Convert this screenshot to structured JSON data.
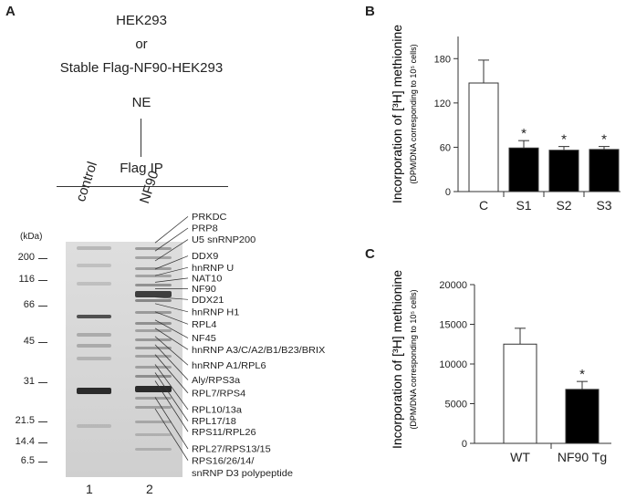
{
  "panel_a": {
    "letter": "A",
    "flow": [
      "HEK293",
      "or",
      "Stable Flag-NF90-HEK293",
      "NE",
      "Flag IP"
    ],
    "lanes": [
      "control",
      "NF90"
    ],
    "lane_numbers": [
      "1",
      "2"
    ],
    "kda_label": "(kDa)",
    "markers": [
      "200",
      "116",
      "66",
      "45",
      "31",
      "21.5",
      "14.4",
      "6.5"
    ],
    "proteins": [
      "PRKDC",
      "PRP8",
      "U5 snRNP200",
      "DDX9",
      "hnRNP U",
      "NAT10",
      "NF90",
      "DDX21",
      "hnRNP H1",
      "RPL4",
      "NF45",
      "hnRNP A3/C/A2/B1/B23/BRIX",
      "hnRNP A1/RPL6",
      "Aly/RPS3a",
      "RPL7/RPS4",
      "RPL10/13a",
      "RPL17/18",
      "RPS11/RPL26",
      "RPL27/RPS13/15",
      "RPS16/26/14/",
      "snRNP D3 polypeptide"
    ]
  },
  "panel_b": {
    "letter": "B",
    "ylabel_main": "Incorporation of [³H] methionine",
    "ylabel_sub": "(DPM/DNA corresponding to 10⁵ cells)",
    "sig_mark": "*"
  },
  "panel_c": {
    "letter": "C",
    "ylabel_main": "Incorporation of [³H] methionine",
    "ylabel_sub": "(DPM/DNA corresponding to 10⁵ cells)",
    "sig_mark": "*"
  },
  "colors": {
    "open_bar": "#ffffff",
    "filled_bar": "#000000",
    "gel": "#d4d4d4"
  },
  "chart_data": [
    {
      "type": "bar",
      "categories": [
        "C",
        "S1",
        "S2",
        "S3"
      ],
      "values": [
        147,
        59,
        56,
        57
      ],
      "errors": [
        31,
        10,
        5,
        4
      ],
      "significant": [
        false,
        true,
        true,
        true
      ],
      "fills": [
        "open",
        "filled",
        "filled",
        "filled"
      ],
      "yticks": [
        "0",
        "60",
        "120",
        "180"
      ],
      "ylim": [
        0,
        210
      ]
    },
    {
      "type": "bar",
      "categories": [
        "WT",
        "NF90 Tg"
      ],
      "values": [
        12500,
        6800
      ],
      "errors": [
        2000,
        1000
      ],
      "significant": [
        false,
        true
      ],
      "fills": [
        "open",
        "filled"
      ],
      "yticks": [
        "0",
        "5000",
        "10000",
        "15000",
        "20000"
      ],
      "ylim": [
        0,
        20000
      ]
    }
  ]
}
